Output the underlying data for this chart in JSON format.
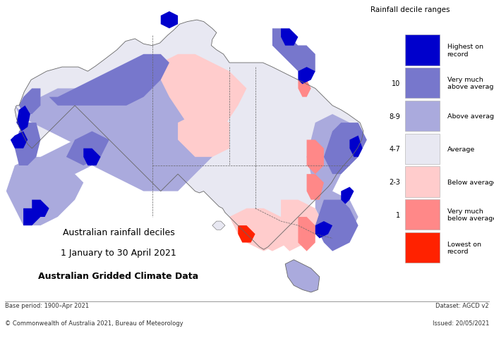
{
  "legend_title": "Rainfall decile ranges",
  "footer_left_1": "Base period: 1900–Apr 2021",
  "footer_left_2": "© Commonwealth of Australia 2021, Bureau of Meteorology",
  "footer_right_1": "Dataset: AGCD v2",
  "footer_right_2": "Issued: 20/05/2021",
  "title_line1": "Australian rainfall deciles",
  "title_line2": "1 January to 30 April 2021",
  "title_line3": "Australian Gridded Climate Data",
  "background_color": "#ffffff",
  "colors": {
    "highest_on_record": "#0000cc",
    "very_much_above": "#7777cc",
    "above_average": "#aaaadd",
    "average": "#e8e8f2",
    "below_average": "#ffcccc",
    "very_much_below": "#ff8888",
    "lowest_on_record": "#ff2200",
    "ocean": "#ffffff",
    "land_base": "#f5f5f5",
    "border": "#666666"
  },
  "legend_items": [
    {
      "color": "#0000cc",
      "label": "Highest on\nrecord",
      "decile": ""
    },
    {
      "color": "#7777cc",
      "label": "Very much\nabove average",
      "decile": "10"
    },
    {
      "color": "#aaaadd",
      "label": "Above average",
      "decile": "8-9"
    },
    {
      "color": "#e8e8f2",
      "label": "Average",
      "decile": "4-7"
    },
    {
      "color": "#ffcccc",
      "label": "Below average",
      "decile": "2-3"
    },
    {
      "color": "#ff8888",
      "label": "Very much\nbelow average",
      "decile": "1"
    },
    {
      "color": "#ff2200",
      "label": "Lowest on\nrecord",
      "decile": ""
    }
  ]
}
